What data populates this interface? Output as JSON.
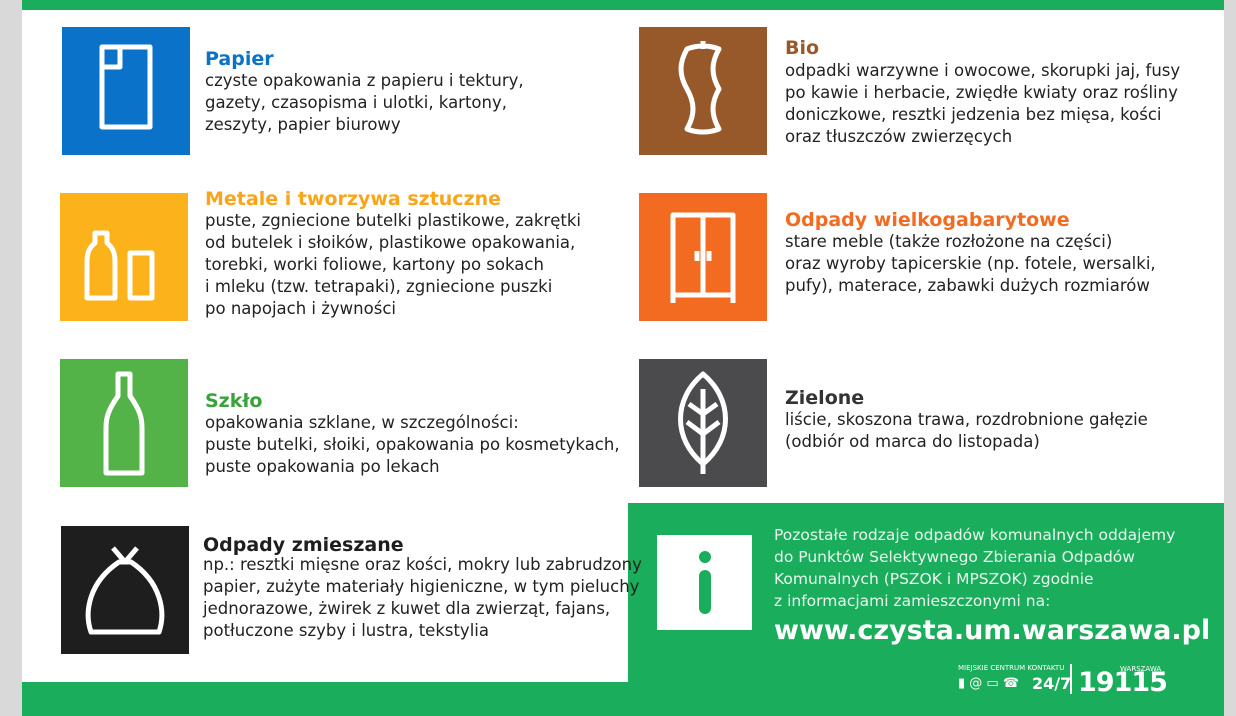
{
  "items": [
    {
      "title": "Papier",
      "lines": [
        "czyste opakowania z papieru i tektury,",
        "gazety, czasopisma i ulotki, kartony,",
        "zeszyty, papier biurowy"
      ]
    },
    {
      "title": "Metale i tworzywa sztuczne",
      "lines": [
        "puste, zgniecione butelki plastikowe, zakrętki",
        "od butelek i słoików, plastikowe opakowania,",
        "torebki, worki foliowe, kartony po sokach",
        "i mleku (tzw.  tetrapaki), zgniecione puszki",
        "po napojach i żywności"
      ]
    },
    {
      "title": "Szkło",
      "lines": [
        "opakowania szklane, w szczególności:",
        "puste butelki, słoiki, opakowania po kosmetykach,",
        "puste opakowania po lekach"
      ]
    },
    {
      "title": "Odpady zmieszane",
      "lines": [
        "np.: resztki mięsne oraz kości, mokry lub zabrudzony",
        "papier, zużyte materiały higieniczne, w tym pieluchy",
        "jednorazowe, żwirek z kuwet dla zwierząt, fajans,",
        "potłuczone szyby i lustra, tekstylia"
      ]
    },
    {
      "title": "Bio",
      "lines": [
        "odpadki warzywne i owocowe, skorupki jaj, fusy",
        "po kawie i herbacie, zwiędłe kwiaty oraz rośliny",
        "doniczkowe, resztki jedzenia bez mięsa, kości",
        "oraz tłuszczów zwierzęcych"
      ]
    },
    {
      "title": "Odpady wielkogabarytowe",
      "lines": [
        "stare meble (także rozłożone na części)",
        "oraz wyroby tapicerskie (np. fotele, wersalki,",
        "pufy), materace, zabawki dużych rozmiarów"
      ]
    },
    {
      "title": "Zielone",
      "lines": [
        "liście, skoszona trawa, rozdrobnione gałęzie",
        "(odbiór od marca do listopada)"
      ]
    }
  ],
  "info": {
    "lines": [
      "Pozostałe rodzaje odpadów komunalnych oddajemy",
      "do Punktów Selektywnego Zbierania Odpadów",
      "Komunalnych (PSZOK i MPSZOK) zgodnie",
      "z informacjami zamieszczonymi na:"
    ],
    "url": "www.czysta.um.warszawa.pl",
    "contact_label": "MIEJSKIE CENTRUM KONTAKTU",
    "hours": "24/7",
    "city": "WARSZAWA",
    "number": "19115"
  }
}
